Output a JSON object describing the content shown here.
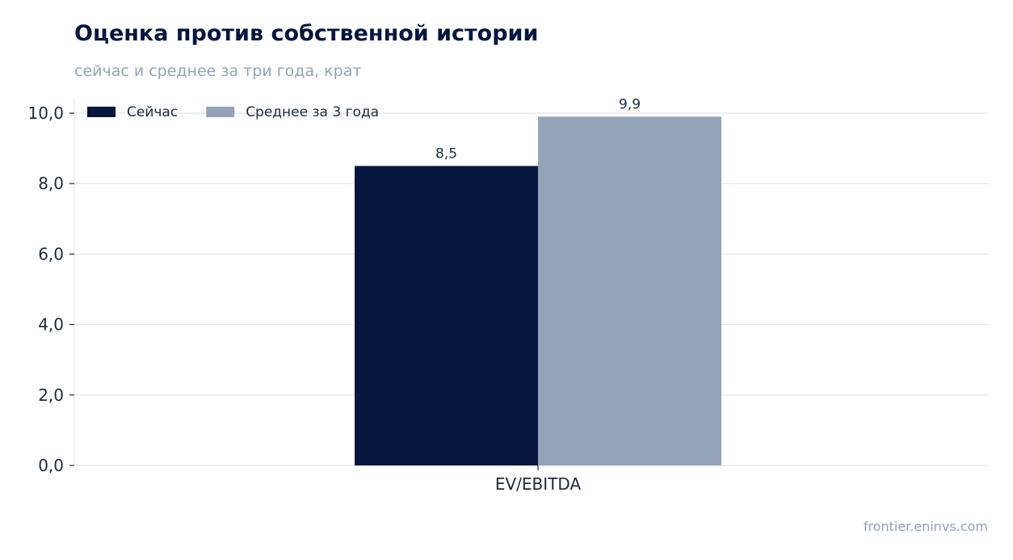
{
  "chart_data": {
    "type": "bar",
    "title": "Оценка против собственной истории",
    "subtitle": "сейчас и среднее за три года, крат",
    "categories": [
      "EV/EBITDA"
    ],
    "series": [
      {
        "name": "Сейчас",
        "values": [
          8.5
        ],
        "value_labels": [
          "8,5"
        ],
        "color": "#06163f"
      },
      {
        "name": "Среднее за 3 года",
        "values": [
          9.9
        ],
        "value_labels": [
          "9,9"
        ],
        "color": "#94a3b8"
      }
    ],
    "ylim": [
      0,
      10
    ],
    "y_ticks": [
      0,
      2,
      4,
      6,
      8,
      10
    ],
    "y_tick_labels": [
      "0,0",
      "2,0",
      "4,0",
      "6,0",
      "8,0",
      "10,0"
    ],
    "xlabel": "",
    "ylabel": "",
    "grid": "horizontal",
    "legend_position": "top-left"
  },
  "source": "frontier.eninvs.com"
}
